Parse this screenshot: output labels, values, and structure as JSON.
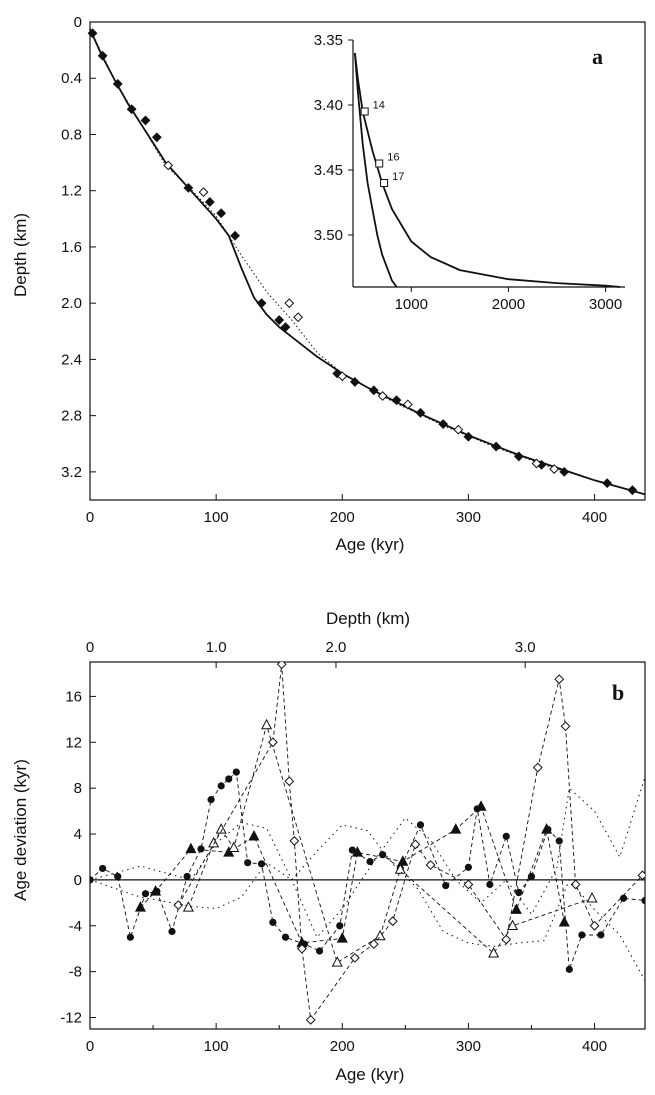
{
  "chart_data": [
    {
      "panel_label": "a",
      "type": "line",
      "xlabel": "Age (kyr)",
      "ylabel": "Depth (km)",
      "xlim": [
        0,
        440
      ],
      "ylim": [
        0,
        3.4
      ],
      "y_inverted": true,
      "xticks": [
        "0",
        "100",
        "200",
        "300",
        "400"
      ],
      "xtick_values": [
        0,
        100,
        200,
        300,
        400
      ],
      "yticks": [
        "0",
        "0.4",
        "0.8",
        "1.2",
        "1.6",
        "2.0",
        "2.4",
        "2.8",
        "3.2"
      ],
      "ytick_values": [
        0,
        0.4,
        0.8,
        1.2,
        1.6,
        2.0,
        2.4,
        2.8,
        3.2
      ],
      "series": [
        {
          "style": "solid-line",
          "x": [
            0,
            5,
            10,
            20,
            30,
            40,
            50,
            60,
            70,
            80,
            90,
            100,
            110,
            120,
            130,
            140,
            150,
            160,
            170,
            180,
            190,
            200,
            220,
            240,
            260,
            280,
            300,
            320,
            340,
            360,
            380,
            400,
            420,
            440
          ],
          "y": [
            0.05,
            0.15,
            0.25,
            0.42,
            0.58,
            0.72,
            0.86,
            1.0,
            1.1,
            1.2,
            1.3,
            1.4,
            1.52,
            1.75,
            1.96,
            2.08,
            2.17,
            2.24,
            2.31,
            2.38,
            2.44,
            2.5,
            2.6,
            2.69,
            2.78,
            2.86,
            2.94,
            3.01,
            3.08,
            3.14,
            3.2,
            3.26,
            3.31,
            3.36
          ]
        },
        {
          "style": "dotted-line",
          "x": [
            0,
            20,
            40,
            60,
            80,
            100,
            120,
            140,
            160,
            180,
            200,
            240,
            280,
            320,
            360,
            400,
            440
          ],
          "y": [
            0.05,
            0.42,
            0.72,
            1.02,
            1.19,
            1.38,
            1.66,
            1.92,
            2.12,
            2.35,
            2.5,
            2.7,
            2.87,
            3.02,
            3.15,
            3.26,
            3.36
          ]
        },
        {
          "style": "filled-markers",
          "x": [
            2,
            10,
            22,
            33,
            44,
            53,
            78,
            95,
            104,
            115,
            136,
            150,
            155,
            196,
            210,
            225,
            243,
            262,
            280,
            300,
            322,
            340,
            358,
            376,
            410,
            430
          ],
          "y": [
            0.08,
            0.24,
            0.44,
            0.62,
            0.7,
            0.82,
            1.18,
            1.28,
            1.36,
            1.52,
            2.0,
            2.12,
            2.17,
            2.5,
            2.56,
            2.62,
            2.69,
            2.78,
            2.86,
            2.95,
            3.02,
            3.09,
            3.15,
            3.2,
            3.28,
            3.33
          ]
        },
        {
          "style": "open-markers",
          "x": [
            62,
            90,
            158,
            165,
            200,
            232,
            252,
            292,
            354,
            368
          ],
          "y": [
            1.02,
            1.21,
            2.0,
            2.1,
            2.52,
            2.66,
            2.72,
            2.9,
            3.14,
            3.18
          ]
        }
      ],
      "inset": {
        "type": "line",
        "xlim": [
          400,
          3200
        ],
        "ylim": [
          3.35,
          3.54
        ],
        "y_inverted": true,
        "xticks": [
          "1000",
          "2000",
          "3000"
        ],
        "xtick_values": [
          1000,
          2000,
          3000
        ],
        "yticks": [
          "3.35",
          "3.40",
          "3.45",
          "3.50"
        ],
        "ytick_values": [
          3.35,
          3.4,
          3.45,
          3.5
        ],
        "curves": [
          {
            "x": [
              420,
              450,
              500,
              550,
              600,
              650,
              700,
              750,
              800,
              850
            ],
            "y": [
              3.36,
              3.39,
              3.43,
              3.46,
              3.48,
              3.5,
              3.515,
              3.525,
              3.535,
              3.54
            ]
          },
          {
            "x": [
              420,
              450,
              500,
              600,
              700,
              800,
              1000,
              1200,
              1500,
              2000,
              2500,
              3000,
              3150
            ],
            "y": [
              3.36,
              3.38,
              3.405,
              3.435,
              3.46,
              3.48,
              3.505,
              3.517,
              3.527,
              3.534,
              3.537,
              3.539,
              3.54
            ]
          }
        ],
        "markers": [
          {
            "x": 520,
            "y": 3.405,
            "label": "14"
          },
          {
            "x": 670,
            "y": 3.445,
            "label": "16"
          },
          {
            "x": 720,
            "y": 3.46,
            "label": "17"
          }
        ]
      }
    },
    {
      "panel_label": "b",
      "type": "line",
      "xlabel": "Age (kyr)",
      "ylabel": "Age deviation (kyr)",
      "top_xlabel": "Depth (km)",
      "xlim": [
        0,
        440
      ],
      "ylim": [
        -13,
        19
      ],
      "xticks": [
        "0",
        "100",
        "200",
        "300",
        "400"
      ],
      "xtick_values": [
        0,
        100,
        200,
        300,
        400
      ],
      "yticks": [
        "16",
        "12",
        "8",
        "4",
        "0",
        "-4",
        "-8",
        "-12"
      ],
      "ytick_values": [
        16,
        12,
        8,
        4,
        0,
        -4,
        -8,
        -12
      ],
      "top_ticks": [
        {
          "label": "0",
          "age": 0
        },
        {
          "label": "1.0",
          "age": 100
        },
        {
          "label": "2.0",
          "age": 195
        },
        {
          "label": "3.0",
          "age": 345
        }
      ],
      "series": [
        {
          "marker": "filled-circle",
          "x": [
            0,
            10,
            22,
            32,
            44,
            53,
            65,
            77,
            88,
            96,
            104,
            110,
            116,
            125,
            136,
            145,
            155,
            170,
            182,
            198,
            208,
            222,
            232,
            246,
            262,
            282,
            300,
            307,
            317,
            330,
            340,
            350,
            363,
            372,
            380,
            390,
            405,
            423,
            440
          ],
          "y": [
            0,
            1,
            0.3,
            -5,
            -1.2,
            -1,
            -4.5,
            0.3,
            2.7,
            7,
            8.2,
            8.8,
            9.4,
            1.5,
            1.4,
            -3.7,
            -5,
            -5.6,
            -6.2,
            -4,
            2.6,
            1.6,
            2.2,
            1,
            4.8,
            -0.5,
            1.1,
            6.2,
            -0.4,
            3.8,
            -1.1,
            0.3,
            4.4,
            3.4,
            -7.8,
            -4.8,
            -4.8,
            -1.6,
            -1.8
          ]
        },
        {
          "marker": "filled-triangle",
          "x": [
            40,
            52,
            80,
            110,
            130,
            168,
            200,
            212,
            248,
            290,
            310,
            338,
            362,
            376
          ],
          "y": [
            -2.4,
            -1,
            2.7,
            2.4,
            3.8,
            -5.5,
            -5.1,
            2.4,
            1.6,
            4.4,
            6.4,
            -2.6,
            4.4,
            -3.7
          ]
        },
        {
          "marker": "open-triangle",
          "x": [
            78,
            98,
            104,
            114,
            140,
            196,
            230,
            246,
            320,
            335,
            398
          ],
          "y": [
            -2.4,
            3.2,
            4.4,
            2.8,
            13.5,
            -7.2,
            -4.9,
            0.9,
            -6.4,
            -4,
            -1.6
          ]
        },
        {
          "marker": "open-diamond",
          "x": [
            70,
            145,
            152,
            158,
            162,
            168,
            175,
            210,
            225,
            240,
            258,
            270,
            300,
            330,
            355,
            372,
            377,
            385,
            400,
            438
          ],
          "y": [
            -2.2,
            12,
            18.8,
            8.6,
            3.4,
            -6,
            -12.2,
            -6.8,
            -5.6,
            -3.6,
            3.1,
            1.3,
            -0.4,
            -5.2,
            9.8,
            17.5,
            13.4,
            -0.4,
            -4,
            0.4
          ]
        },
        {
          "marker": "none",
          "style": "dotted",
          "x": [
            0,
            40,
            80,
            100,
            120,
            140,
            160,
            180,
            200,
            230,
            250,
            270,
            290,
            310,
            330,
            350,
            370,
            380,
            400,
            420,
            440
          ],
          "y": [
            0,
            1.2,
            0,
            3.2,
            5,
            4.5,
            0,
            -5,
            -2.5,
            2.4,
            5.4,
            3.5,
            0,
            -2,
            0,
            -3,
            1,
            8,
            6,
            2,
            9
          ]
        },
        {
          "marker": "none",
          "style": "dotted",
          "x": [
            0,
            40,
            80,
            100,
            120,
            140,
            160,
            180,
            200,
            220,
            240,
            260,
            280,
            300,
            320,
            340,
            360,
            380,
            400,
            420,
            440
          ],
          "y": [
            0,
            -1.5,
            -2.3,
            -2.5,
            -1.5,
            1.5,
            0,
            2.5,
            4.8,
            4.3,
            1.4,
            -0.8,
            -4.5,
            -5.5,
            -5.8,
            -5.5,
            -5.3,
            0,
            -2.6,
            -4.8,
            -8.8
          ]
        }
      ]
    }
  ]
}
